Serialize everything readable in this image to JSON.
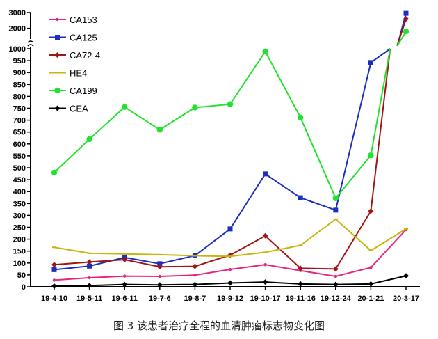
{
  "caption": "图 3 该患者治疗全程的血清肿瘤标志物变化图",
  "chart_data": {
    "type": "line",
    "categories": [
      "19-4-10",
      "19-5-11",
      "19-6-11",
      "19-7-6",
      "19-8-7",
      "19-9-12",
      "19-10-17",
      "19-11-16",
      "19-12-24",
      "20-1-21",
      "20-3-17"
    ],
    "y_axis": {
      "lower_range": [
        0,
        1000
      ],
      "lower_ticks": [
        0,
        50,
        100,
        150,
        200,
        250,
        300,
        350,
        400,
        450,
        500,
        550,
        600,
        650,
        700,
        750,
        800,
        850,
        900,
        950,
        1000
      ],
      "upper_range": [
        1500,
        3000
      ],
      "upper_ticks": [
        2000,
        3000
      ],
      "axis_break": true
    },
    "grid": false,
    "legend_placement": "top-left",
    "series": [
      {
        "name": "CA153",
        "color": "#e8257e",
        "marker": "dot",
        "values": [
          28,
          38,
          45,
          44,
          49,
          73,
          93,
          68,
          44,
          81,
          240
        ]
      },
      {
        "name": "CA125",
        "color": "#1a2fbf",
        "marker": "square",
        "values": [
          72,
          87,
          123,
          97,
          131,
          243,
          474,
          374,
          322,
          942,
          2950
        ]
      },
      {
        "name": "CA72-4",
        "color": "#a31515",
        "marker": "diamond",
        "values": [
          93,
          104,
          114,
          84,
          86,
          133,
          214,
          78,
          75,
          318,
          2600
        ]
      },
      {
        "name": "HE4",
        "color": "#c9b50c",
        "marker": "bar",
        "values": [
          166,
          141,
          138,
          135,
          130,
          128,
          145,
          174,
          284,
          152,
          243
        ]
      },
      {
        "name": "CA199",
        "color": "#21e32e",
        "marker": "circle",
        "values": [
          480,
          620,
          755,
          660,
          753,
          767,
          988,
          711,
          372,
          552,
          1800
        ]
      },
      {
        "name": "CEA",
        "color": "#000000",
        "marker": "diamond",
        "values": [
          3,
          5,
          10,
          8,
          10,
          16,
          20,
          12,
          10,
          12,
          46
        ]
      }
    ]
  }
}
